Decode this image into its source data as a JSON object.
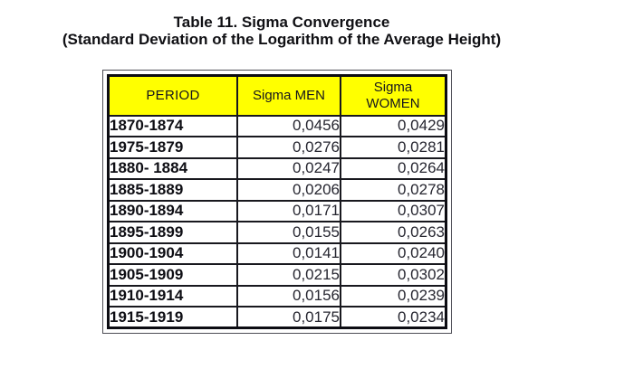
{
  "title": {
    "line1": "Table 11. Sigma Convergence",
    "line2": "(Standard Deviation of the Logarithm of the Average Height)"
  },
  "table": {
    "header_bg": "#FFFF00",
    "columns": [
      "PERIOD",
      "Sigma MEN",
      "Sigma WOMEN"
    ],
    "rows": [
      {
        "period": "1870-1874",
        "sigma_men": "0,0456",
        "sigma_women": "0,0429"
      },
      {
        "period": "1975-1879",
        "sigma_men": "0,0276",
        "sigma_women": "0,0281"
      },
      {
        "period": "1880- 1884",
        "sigma_men": "0,0247",
        "sigma_women": "0,0264"
      },
      {
        "period": "1885-1889",
        "sigma_men": "0,0206",
        "sigma_women": "0,0278"
      },
      {
        "period": "1890-1894",
        "sigma_men": "0,0171",
        "sigma_women": "0,0307"
      },
      {
        "period": "1895-1899",
        "sigma_men": "0,0155",
        "sigma_women": "0,0263"
      },
      {
        "period": "1900-1904",
        "sigma_men": "0,0141",
        "sigma_women": "0,0240"
      },
      {
        "period": "1905-1909",
        "sigma_men": "0,0215",
        "sigma_women": "0,0302"
      },
      {
        "period": "1910-1914",
        "sigma_men": "0,0156",
        "sigma_women": "0,0239"
      },
      {
        "period": "1915-1919",
        "sigma_men": "0,0175",
        "sigma_women": "0,0234"
      }
    ]
  },
  "chart_data": {
    "type": "table",
    "title": "Table 11. Sigma Convergence (Standard Deviation of the Logarithm of the Average Height)",
    "columns": [
      "PERIOD",
      "Sigma MEN",
      "Sigma WOMEN"
    ],
    "rows": [
      [
        "1870-1874",
        "0,0456",
        "0,0429"
      ],
      [
        "1975-1879",
        "0,0276",
        "0,0281"
      ],
      [
        "1880- 1884",
        "0,0247",
        "0,0264"
      ],
      [
        "1885-1889",
        "0,0206",
        "0,0278"
      ],
      [
        "1890-1894",
        "0,0171",
        "0,0307"
      ],
      [
        "1895-1899",
        "0,0155",
        "0,0263"
      ],
      [
        "1900-1904",
        "0,0141",
        "0,0240"
      ],
      [
        "1905-1909",
        "0,0215",
        "0,0302"
      ],
      [
        "1910-1914",
        "0,0156",
        "0,0239"
      ],
      [
        "1915-1919",
        "0,0175",
        "0,0234"
      ]
    ]
  }
}
